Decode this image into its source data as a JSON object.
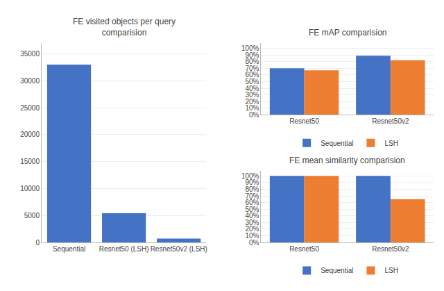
{
  "chart_data": [
    {
      "type": "bar",
      "title": "FE visited objects per query\ncomparision",
      "categories": [
        "Sequential",
        "Resnet50 (LSH)",
        "Resnet50v2 (LSH)"
      ],
      "values": [
        33000,
        5400,
        700
      ],
      "color": "#4472C4",
      "ylim": [
        0,
        37000
      ],
      "yticks": [
        0,
        5000,
        10000,
        15000,
        20000,
        25000,
        30000,
        35000
      ],
      "grid": true
    },
    {
      "type": "bar",
      "title": "FE mAP comparision",
      "categories": [
        "Resnet50",
        "Resnet50v2"
      ],
      "series": [
        {
          "name": "Sequential",
          "color": "#4472C4",
          "values": [
            0.7,
            0.89
          ]
        },
        {
          "name": "LSH",
          "color": "#ED7D31",
          "values": [
            0.67,
            0.82
          ]
        }
      ],
      "ylim": [
        0,
        1.08
      ],
      "yticks": [
        {
          "value": 0.0,
          "label": "0%"
        },
        {
          "value": 0.1,
          "label": "10%"
        },
        {
          "value": 0.2,
          "label": "20%"
        },
        {
          "value": 0.3,
          "label": "30%"
        },
        {
          "value": 0.4,
          "label": "40%"
        },
        {
          "value": 0.5,
          "label": "50%"
        },
        {
          "value": 0.6,
          "label": "60%"
        },
        {
          "value": 0.7,
          "label": "70%"
        },
        {
          "value": 0.8,
          "label": "80%"
        },
        {
          "value": 0.9,
          "label": "90%"
        },
        {
          "value": 1.0,
          "label": "100%"
        }
      ],
      "grid": true,
      "legend": "bottom"
    },
    {
      "type": "bar",
      "title": "FE mean similarity comparision",
      "categories": [
        "Resnet50",
        "Resnet50v2"
      ],
      "series": [
        {
          "name": "Sequential",
          "color": "#4472C4",
          "values": [
            1.0,
            1.0
          ]
        },
        {
          "name": "LSH",
          "color": "#ED7D31",
          "values": [
            1.0,
            0.65
          ]
        }
      ],
      "ylim": [
        0,
        1.08
      ],
      "yticks": [
        {
          "value": 0.0,
          "label": "0%"
        },
        {
          "value": 0.1,
          "label": "10%"
        },
        {
          "value": 0.2,
          "label": "20%"
        },
        {
          "value": 0.3,
          "label": "30%"
        },
        {
          "value": 0.4,
          "label": "40%"
        },
        {
          "value": 0.5,
          "label": "50%"
        },
        {
          "value": 0.6,
          "label": "60%"
        },
        {
          "value": 0.7,
          "label": "70%"
        },
        {
          "value": 0.8,
          "label": "80%"
        },
        {
          "value": 0.9,
          "label": "90%"
        },
        {
          "value": 1.0,
          "label": "100%"
        }
      ],
      "grid": true,
      "legend": "bottom"
    }
  ]
}
